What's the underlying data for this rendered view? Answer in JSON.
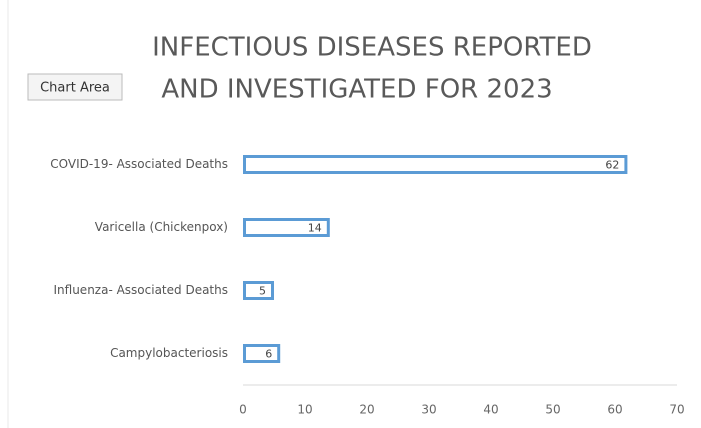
{
  "tooltip": "Chart Area",
  "chart_data": {
    "type": "bar",
    "orientation": "horizontal",
    "title": [
      "INFECTIOUS DISEASES REPORTED",
      "AND INVESTIGATED FOR 2023"
    ],
    "categories": [
      "COVID-19- Associated Deaths",
      "Varicella (Chickenpox)",
      "Influenza- Associated Deaths",
      "Campylobacteriosis"
    ],
    "values": [
      62,
      14,
      5,
      6
    ],
    "color": "#5b9bd5",
    "xlim": [
      0,
      70
    ],
    "xticks": [
      0,
      10,
      20,
      30,
      40,
      50,
      60,
      70
    ],
    "data_labels": true
  }
}
